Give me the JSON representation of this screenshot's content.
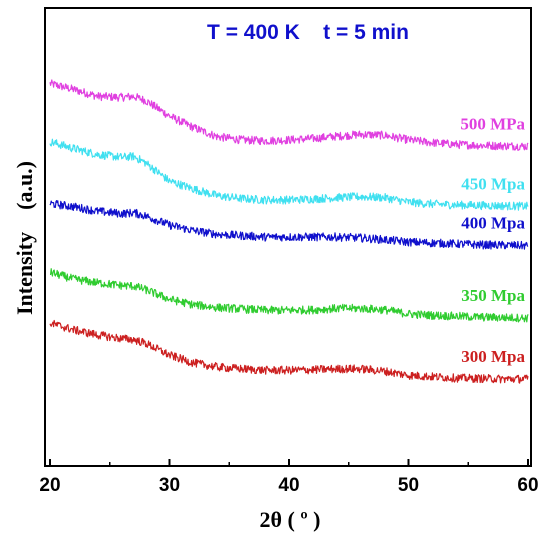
{
  "chart_data": {
    "type": "line",
    "title": "T = 400 K    t = 5 min",
    "xlabel": "2θ ( º )",
    "ylabel": "Intensity    (a.u.)",
    "xlim": [
      20,
      60
    ],
    "x_ticks": [
      20,
      30,
      40,
      50,
      60
    ],
    "y_ticks_shown": false,
    "grid": false,
    "legend": "inline-right",
    "colors": {
      "500 MPa": "#e040e0",
      "450 Mpa": "#40e0f0",
      "400 Mpa": "#1010cc",
      "350 Mpa": "#30cc30",
      "300 Mpa": "#cc2020"
    },
    "x": [
      20,
      22,
      24,
      26,
      27,
      28,
      30,
      32,
      34,
      36,
      38,
      40,
      42,
      44,
      46,
      48,
      50,
      52,
      54,
      56,
      58,
      60
    ],
    "series": [
      {
        "name": "500 MPa",
        "color": "#e040e0",
        "values": [
          0.835,
          0.822,
          0.807,
          0.805,
          0.807,
          0.798,
          0.764,
          0.739,
          0.719,
          0.712,
          0.71,
          0.712,
          0.715,
          0.72,
          0.724,
          0.722,
          0.712,
          0.706,
          0.702,
          0.7,
          0.699,
          0.698
        ]
      },
      {
        "name": "450 Mpa",
        "color": "#40e0f0",
        "values": [
          0.708,
          0.693,
          0.68,
          0.674,
          0.676,
          0.662,
          0.622,
          0.605,
          0.59,
          0.584,
          0.581,
          0.581,
          0.583,
          0.586,
          0.588,
          0.586,
          0.576,
          0.572,
          0.57,
          0.569,
          0.568,
          0.567
        ]
      },
      {
        "name": "400 Mpa",
        "color": "#1010cc",
        "values": [
          0.573,
          0.566,
          0.556,
          0.551,
          0.553,
          0.546,
          0.526,
          0.514,
          0.506,
          0.503,
          0.5,
          0.5,
          0.5,
          0.5,
          0.498,
          0.494,
          0.489,
          0.487,
          0.485,
          0.483,
          0.482,
          0.481
        ]
      },
      {
        "name": "350 Mpa",
        "color": "#30cc30",
        "values": [
          0.423,
          0.408,
          0.4,
          0.394,
          0.393,
          0.385,
          0.364,
          0.352,
          0.346,
          0.343,
          0.34,
          0.34,
          0.341,
          0.344,
          0.344,
          0.341,
          0.332,
          0.329,
          0.327,
          0.325,
          0.324,
          0.323
        ]
      },
      {
        "name": "300 Mpa",
        "color": "#cc2020",
        "values": [
          0.312,
          0.297,
          0.286,
          0.278,
          0.276,
          0.268,
          0.242,
          0.225,
          0.216,
          0.212,
          0.209,
          0.209,
          0.21,
          0.212,
          0.212,
          0.207,
          0.198,
          0.195,
          0.192,
          0.191,
          0.19,
          0.19
        ]
      }
    ]
  }
}
